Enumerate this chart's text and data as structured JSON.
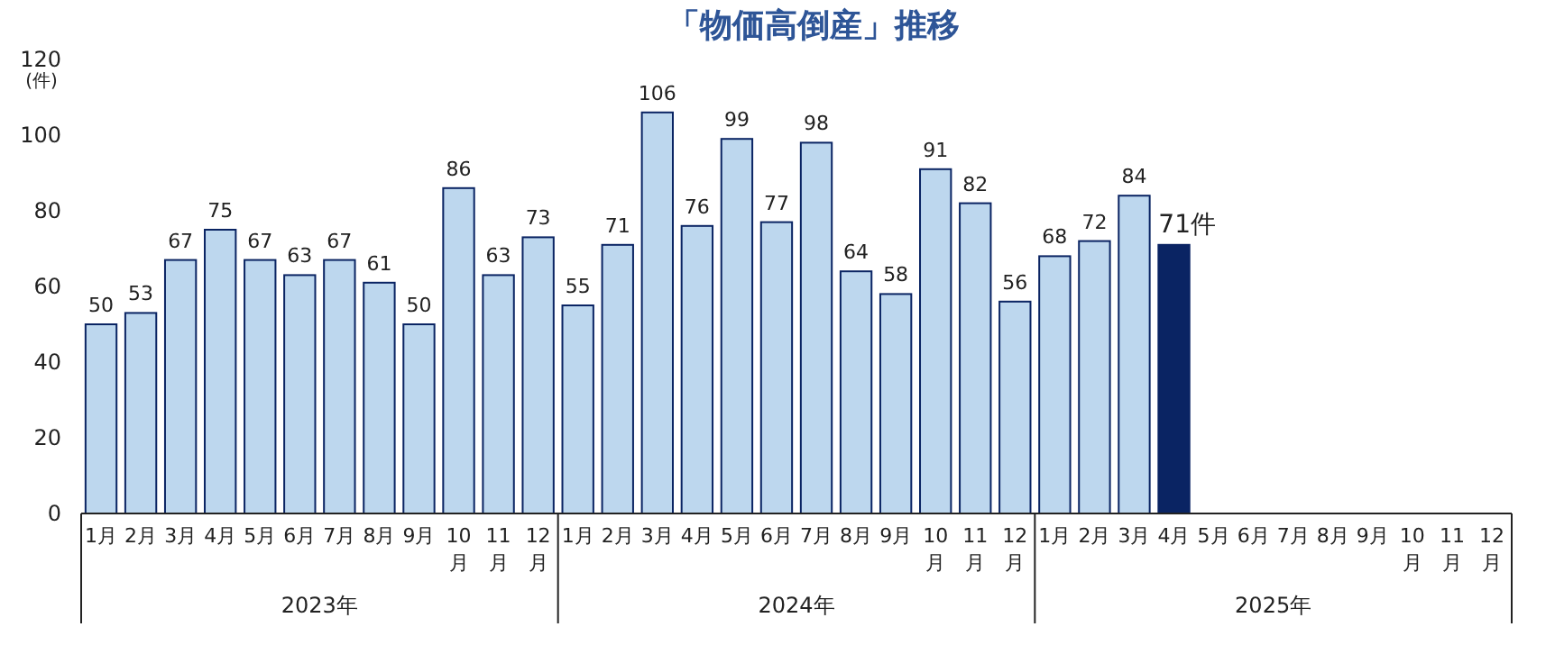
{
  "chart_data": {
    "type": "bar",
    "title": "「物価高倒産」推移",
    "ylabel": "(件)",
    "categories": [
      "1月",
      "2月",
      "3月",
      "4月",
      "5月",
      "6月",
      "7月",
      "8月",
      "9月",
      "10月",
      "11月",
      "12月",
      "1月",
      "2月",
      "3月",
      "4月",
      "5月",
      "6月",
      "7月",
      "8月",
      "9月",
      "10月",
      "11月",
      "12月",
      "1月",
      "2月",
      "3月",
      "4月",
      "5月",
      "6月",
      "7月",
      "8月",
      "9月",
      "10月",
      "11月",
      "12月"
    ],
    "values": [
      50,
      53,
      67,
      75,
      67,
      63,
      67,
      61,
      50,
      86,
      63,
      73,
      55,
      71,
      106,
      76,
      99,
      77,
      98,
      64,
      58,
      91,
      82,
      56,
      68,
      72,
      84,
      71,
      null,
      null,
      null,
      null,
      null,
      null,
      null,
      null
    ],
    "value_labels": [
      "50",
      "53",
      "67",
      "75",
      "67",
      "63",
      "67",
      "61",
      "50",
      "86",
      "63",
      "73",
      "55",
      "71",
      "106",
      "76",
      "99",
      "77",
      "98",
      "64",
      "58",
      "91",
      "82",
      "56",
      "68",
      "72",
      "84",
      "71件",
      null,
      null,
      null,
      null,
      null,
      null,
      null,
      null
    ],
    "colors": [
      "#bdd7ee",
      "#bdd7ee",
      "#bdd7ee",
      "#bdd7ee",
      "#bdd7ee",
      "#bdd7ee",
      "#bdd7ee",
      "#bdd7ee",
      "#bdd7ee",
      "#bdd7ee",
      "#bdd7ee",
      "#bdd7ee",
      "#bdd7ee",
      "#bdd7ee",
      "#bdd7ee",
      "#bdd7ee",
      "#bdd7ee",
      "#bdd7ee",
      "#bdd7ee",
      "#bdd7ee",
      "#bdd7ee",
      "#bdd7ee",
      "#bdd7ee",
      "#bdd7ee",
      "#bdd7ee",
      "#bdd7ee",
      "#bdd7ee",
      "#0a2463",
      null,
      null,
      null,
      null,
      null,
      null,
      null,
      null
    ],
    "ylim": [
      0,
      120
    ],
    "yticks": [
      0,
      20,
      40,
      60,
      80,
      100,
      120
    ],
    "annotations": [
      "2023年",
      "2024年",
      "2025年"
    ]
  }
}
